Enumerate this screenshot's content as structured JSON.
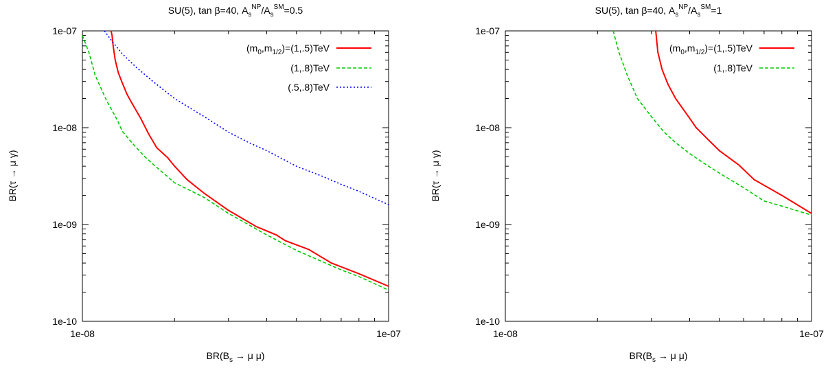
{
  "chart_data": [
    {
      "type": "line",
      "title": "SU(5), tan β=40, A_s^NP/A_s^SM=0.5",
      "title_parts": {
        "pre": "SU(5), tan β=40, A",
        "sub1": "s",
        "sup1": "NP",
        "mid": "/A",
        "sub2": "s",
        "sup2": "SM",
        "post": "=0.5"
      },
      "xlabel": "BR(B_s → μ μ)",
      "xlabel_parts": {
        "pre": "BR(B",
        "sub": "s",
        "post": " → μ μ)"
      },
      "ylabel": "BR(τ → μ γ)",
      "xscale": "log",
      "yscale": "log",
      "xlim": [
        1e-08,
        1e-07
      ],
      "ylim": [
        1e-10,
        1e-07
      ],
      "xticks": [
        "1e-08",
        "1e-07"
      ],
      "yticks": [
        "1e-10",
        "1e-09",
        "1e-08",
        "1e-07"
      ],
      "legend_position": "top-right",
      "series": [
        {
          "name": "(m_0,m_1/2)=(1,.5)TeV",
          "name_parts": {
            "pre": "(m",
            "sub1": "0",
            "mid": ",m",
            "sub2": "1/2",
            "post": ")=(1,.5)TeV"
          },
          "color": "#ff0000",
          "dash": "solid",
          "x": [
            1.24e-08,
            1.25e-08,
            1.26e-08,
            1.28e-08,
            1.31e-08,
            1.35e-08,
            1.4e-08,
            1.45e-08,
            1.5e-08,
            1.55e-08,
            1.65e-08,
            1.75e-08,
            1.9e-08,
            2e-08,
            2.2e-08,
            2.5e-08,
            3e-08,
            3.7e-08,
            4.3e-08,
            4.6e-08,
            5.5e-08,
            6.5e-08,
            8e-08,
            1e-07
          ],
          "y": [
            1e-07,
            9e-08,
            7e-08,
            5e-08,
            3.7e-08,
            2.9e-08,
            2.2e-08,
            1.8e-08,
            1.5e-08,
            1.25e-08,
            8.5e-09,
            6.2e-09,
            4.9e-09,
            4e-09,
            2.9e-09,
            2.1e-09,
            1.4e-09,
            9.5e-10,
            7.8e-10,
            6.8e-10,
            5.5e-10,
            4e-10,
            3.1e-10,
            2.3e-10
          ]
        },
        {
          "name": "(1,.8)TeV",
          "color": "#00cc00",
          "dash": "dashed",
          "x": [
            1e-08,
            1.05e-08,
            1.1e-08,
            1.2e-08,
            1.3e-08,
            1.35e-08,
            1.45e-08,
            1.6e-08,
            1.7e-08,
            2e-08,
            2.5e-08,
            3e-08,
            4e-08,
            5e-08,
            6e-08,
            7e-08,
            8e-08,
            1e-07
          ],
          "y": [
            9e-08,
            6e-08,
            3.5e-08,
            1.9e-08,
            1.2e-08,
            9.2e-09,
            7e-09,
            5e-09,
            4.2e-09,
            2.7e-09,
            1.9e-09,
            1.3e-09,
            7.8e-10,
            5.4e-10,
            4.2e-10,
            3.4e-10,
            2.9e-10,
            2.1e-10
          ]
        },
        {
          "name": "(.5,.8)TeV",
          "color": "#0000ff",
          "dash": "dotted",
          "x": [
            1.18e-08,
            1.25e-08,
            1.35e-08,
            1.5e-08,
            1.7e-08,
            2e-08,
            2.5e-08,
            3e-08,
            3.5e-08,
            4e-08,
            5e-08,
            6e-08,
            7e-08,
            8e-08,
            1e-07
          ],
          "y": [
            1e-07,
            7.8e-08,
            5.8e-08,
            4.2e-08,
            3e-08,
            2e-08,
            1.3e-08,
            9e-09,
            7e-09,
            5.8e-09,
            4e-09,
            3.2e-09,
            2.6e-09,
            2.2e-09,
            1.6e-09
          ]
        }
      ]
    },
    {
      "type": "line",
      "title": "SU(5), tan β=40, A_s^NP/A_s^SM=1",
      "title_parts": {
        "pre": "SU(5), tan β=40, A",
        "sub1": "s",
        "sup1": "NP",
        "mid": "/A",
        "sub2": "s",
        "sup2": "SM",
        "post": "=1"
      },
      "xlabel": "BR(B_s → μ μ)",
      "xlabel_parts": {
        "pre": "BR(B",
        "sub": "s",
        "post": " → μ μ)"
      },
      "ylabel": "BR(τ → μ γ)",
      "xscale": "log",
      "yscale": "log",
      "xlim": [
        1e-08,
        1e-07
      ],
      "ylim": [
        1e-10,
        1e-07
      ],
      "xticks": [
        "1e-08",
        "1e-07"
      ],
      "yticks": [
        "1e-10",
        "1e-09",
        "1e-08",
        "1e-07"
      ],
      "legend_position": "top-right",
      "series": [
        {
          "name": "(m_0,m_1/2)=(1,.5)TeV",
          "name_parts": {
            "pre": "(m",
            "sub1": "0",
            "mid": ",m",
            "sub2": "1/2",
            "post": ")=(1,.5)TeV"
          },
          "color": "#ff0000",
          "dash": "solid",
          "x": [
            3.1e-08,
            3.15e-08,
            3.25e-08,
            3.4e-08,
            3.6e-08,
            4e-08,
            4.2e-08,
            4.6e-08,
            5e-08,
            5.8e-08,
            6.5e-08,
            8e-08,
            1e-07
          ],
          "y": [
            1e-07,
            6e-08,
            4e-08,
            2.8e-08,
            2e-08,
            1.25e-08,
            1e-08,
            7.5e-09,
            5.8e-09,
            4.1e-09,
            2.9e-09,
            2e-09,
            1.3e-09
          ]
        },
        {
          "name": "(1,.8)TeV",
          "color": "#00cc00",
          "dash": "dashed",
          "x": [
            2.25e-08,
            2.35e-08,
            2.5e-08,
            2.7e-08,
            3e-08,
            3.3e-08,
            3.6e-08,
            4e-08,
            4.5e-08,
            5e-08,
            6e-08,
            7e-08,
            8e-08,
            1e-07
          ],
          "y": [
            1e-07,
            6e-08,
            3.5e-08,
            2e-08,
            1.3e-08,
            9e-09,
            7e-09,
            5.4e-09,
            4.2e-09,
            3.4e-09,
            2.4e-09,
            1.75e-09,
            1.55e-09,
            1.25e-09
          ]
        }
      ]
    }
  ]
}
